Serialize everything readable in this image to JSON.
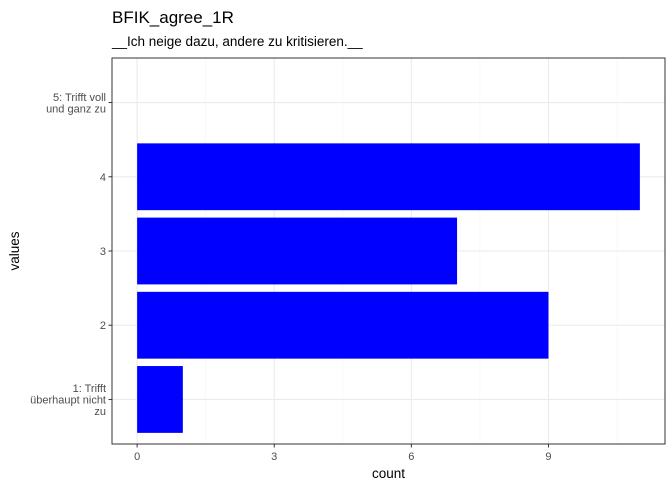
{
  "chart_data": {
    "type": "bar",
    "orientation": "horizontal",
    "title": "BFIK_agree_1R",
    "subtitle": "__Ich neige dazu, andere zu kritisieren.__",
    "xlabel": "count",
    "ylabel": "values",
    "categories": [
      [
        "1: Trifft",
        "überhaupt nicht",
        "zu"
      ],
      [
        "2"
      ],
      [
        "3"
      ],
      [
        "4"
      ],
      [
        "5: Trifft voll",
        "und ganz zu"
      ]
    ],
    "values": [
      1,
      9,
      7,
      11,
      0
    ],
    "xlim": [
      -0.55,
      11.55
    ],
    "xticks": [
      0,
      3,
      6,
      9
    ],
    "xtick_labels": [
      "0",
      "3",
      "6",
      "9"
    ],
    "grid": true,
    "legend": "none",
    "bar_color": "#0000ff",
    "panel_border_color": "#333333",
    "grid_major_color": "#ebebeb",
    "grid_minor_color": "#f5f5f5"
  }
}
